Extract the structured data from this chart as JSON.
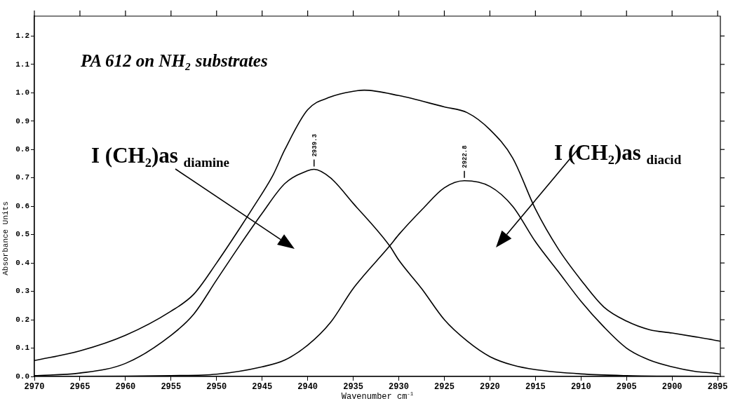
{
  "chart_data": {
    "type": "line",
    "title": "PA 612 on NH₂ substrates",
    "xlabel": "Wavenumber cm$^{-1}$",
    "ylabel": "Absorbance Units",
    "xlim": [
      2970,
      2894.7
    ],
    "ylim": [
      0,
      1.27
    ],
    "xticks": [
      2970,
      2965,
      2960,
      2955,
      2950,
      2945,
      2940,
      2935,
      2930,
      2925,
      2920,
      2915,
      2910,
      2905,
      2900,
      2895
    ],
    "yticks": [
      {
        "value": 0,
        "label": "0.0"
      },
      {
        "value": 0.1,
        "label": "0.1"
      },
      {
        "value": 0.2,
        "label": "0.2"
      },
      {
        "value": 0.3,
        "label": "0.3"
      },
      {
        "value": 0.4,
        "label": "0.4"
      },
      {
        "value": 0.5,
        "label": "0.5"
      },
      {
        "value": 0.6,
        "label": "0.6"
      },
      {
        "value": 0.7,
        "label": "0.7"
      },
      {
        "value": 0.8,
        "label": "0.8"
      },
      {
        "value": 0.9,
        "label": "0.9"
      },
      {
        "value": 1,
        "label": "1.0"
      },
      {
        "value": 1.1,
        "label": "1.1"
      },
      {
        "value": 1.2,
        "label": "1.2"
      }
    ],
    "marker": "none",
    "line_style": "solid",
    "series": [
      {
        "color": "#000000",
        "x": [
          2970,
          2965,
          2960,
          2955,
          2952.5,
          2950,
          2947.5,
          2945.9,
          2943.8,
          2942.5,
          2940,
          2937.5,
          2935,
          2933.8,
          2930,
          2925,
          2922.5,
          2920,
          2917.5,
          2915,
          2912.5,
          2910,
          2907.5,
          2905,
          2902.5,
          2900,
          2897.5,
          2895,
          2894.7
        ],
        "values": [
          0.056,
          0.09,
          0.145,
          0.23,
          0.29,
          0.4,
          0.52,
          0.6,
          0.71,
          0.8,
          0.94,
          0.985,
          1.005,
          1.009,
          0.99,
          0.95,
          0.93,
          0.87,
          0.77,
          0.59,
          0.45,
          0.34,
          0.245,
          0.195,
          0.165,
          0.153,
          0.14,
          0.126,
          0.124
        ]
      },
      {
        "color": "#000000",
        "x": [
          2970,
          2965,
          2960,
          2955,
          2952.5,
          2950,
          2947.5,
          2945,
          2942.5,
          2940,
          2939.3,
          2937.5,
          2935,
          2931,
          2930,
          2927.5,
          2925,
          2922.5,
          2920,
          2917.5,
          2915,
          2910,
          2905,
          2900,
          2894.7
        ],
        "values": [
          0.003,
          0.012,
          0.046,
          0.145,
          0.22,
          0.34,
          0.46,
          0.575,
          0.68,
          0.725,
          0.73,
          0.7,
          0.61,
          0.46,
          0.41,
          0.31,
          0.2,
          0.125,
          0.07,
          0.04,
          0.024,
          0.009,
          0.003,
          0.001,
          0
        ]
      },
      {
        "color": "#000000",
        "x": [
          2970,
          2960,
          2955,
          2950,
          2945,
          2942.5,
          2940,
          2937.5,
          2935,
          2931,
          2930,
          2927.4,
          2925,
          2922.8,
          2920,
          2917.5,
          2915,
          2912.5,
          2910,
          2907.5,
          2905,
          2902.5,
          2900,
          2897.5,
          2895,
          2894.7
        ],
        "values": [
          0,
          0.001,
          0.003,
          0.008,
          0.034,
          0.058,
          0.11,
          0.19,
          0.31,
          0.46,
          0.5,
          0.59,
          0.665,
          0.69,
          0.67,
          0.6,
          0.475,
          0.37,
          0.265,
          0.175,
          0.1,
          0.058,
          0.034,
          0.018,
          0.01,
          0.008
        ]
      }
    ],
    "annotations": [
      "I (CH₂)as $_{diamine}$",
      "I (CH₂)as $_{diacid}$",
      {
        "text": "2939.3",
        "x": 2939.3,
        "y": 0.73
      },
      {
        "text": "2922.8",
        "x": 2922.8,
        "y": 0.69
      }
    ]
  }
}
